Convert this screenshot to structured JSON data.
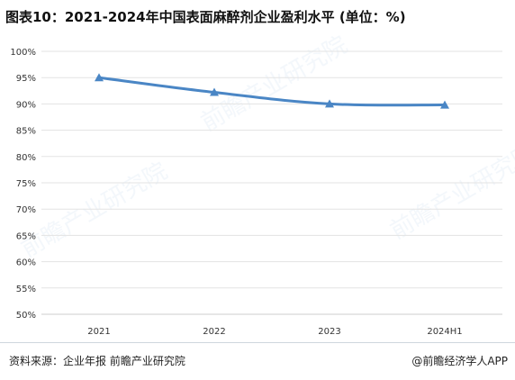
{
  "title": "图表10：2021-2024年中国表面麻醉剂企业盈利水平 (单位：%)",
  "footer": {
    "source": "资料来源：企业年报 前瞻产业研究院",
    "credit": "@前瞻经济学人APP"
  },
  "watermark": "前瞻产业研究院",
  "colors": {
    "series": "#4a86c5",
    "grid": "#e3e3e3",
    "axis": "#cccccc"
  },
  "chart_data": {
    "type": "line",
    "categories": [
      "2021",
      "2022",
      "2023",
      "2024H1"
    ],
    "series": [
      {
        "values": [
          95.0,
          92.2,
          90.0,
          89.8
        ]
      }
    ],
    "ylim": [
      50,
      100
    ],
    "yticks": [
      "50%",
      "55%",
      "60%",
      "65%",
      "70%",
      "75%",
      "80%",
      "85%",
      "90%",
      "95%",
      "100%"
    ],
    "xlabel": "",
    "ylabel": "",
    "grid": true,
    "marker": "triangle"
  }
}
